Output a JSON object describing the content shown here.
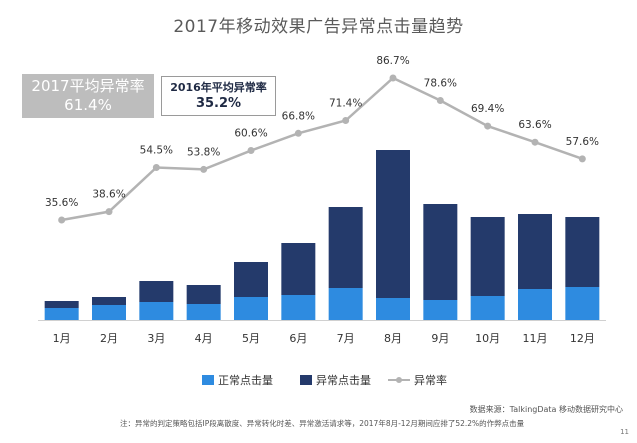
{
  "title": "2017年移动效果广告异常点击量趋势",
  "avg_2017": {
    "label": "2017平均异常率",
    "value": "61.4%"
  },
  "avg_2016": {
    "label": "2016年平均异常率",
    "value": "35.2%"
  },
  "legend": {
    "normal": "正常点击量",
    "abnormal": "异常点击量",
    "rate": "异常率"
  },
  "source": "数据来源：TalkingData 移动数据研究中心",
  "note": "注：异常的判定策略包括IP段离散度、异常转化时差、异常激活请求等，2017年8月-12月期间应排了52.2%的作弊点击量",
  "page_number": "11",
  "colors": {
    "normal": "#2e8be0",
    "abnormal": "#243a6b",
    "rate_line": "#b3b3b3",
    "title": "#5a5a5a"
  },
  "chart_data": {
    "type": "bar",
    "categories": [
      "1月",
      "2月",
      "3月",
      "4月",
      "5月",
      "6月",
      "7月",
      "8月",
      "9月",
      "10月",
      "11月",
      "12月"
    ],
    "series": [
      {
        "name": "正常点击量",
        "stacked": true,
        "values": [
          12,
          15,
          18,
          16,
          23,
          25,
          32,
          22,
          20,
          24,
          31,
          33
        ]
      },
      {
        "name": "异常点击量",
        "stacked": true,
        "values": [
          7,
          8,
          21,
          19,
          35,
          52,
          81,
          148,
          96,
          79,
          75,
          70
        ]
      },
      {
        "name": "异常率",
        "type": "line",
        "values": [
          35.6,
          38.6,
          54.5,
          53.8,
          60.6,
          66.8,
          71.4,
          86.7,
          78.6,
          69.4,
          63.6,
          57.6
        ],
        "labels": [
          "35.6%",
          "38.6%",
          "54.5%",
          "53.8%",
          "60.6%",
          "66.8%",
          "71.4%",
          "86.7%",
          "78.6%",
          "69.4%",
          "63.6%",
          "57.6%"
        ]
      }
    ],
    "grid": false,
    "legend_position": "bottom"
  }
}
